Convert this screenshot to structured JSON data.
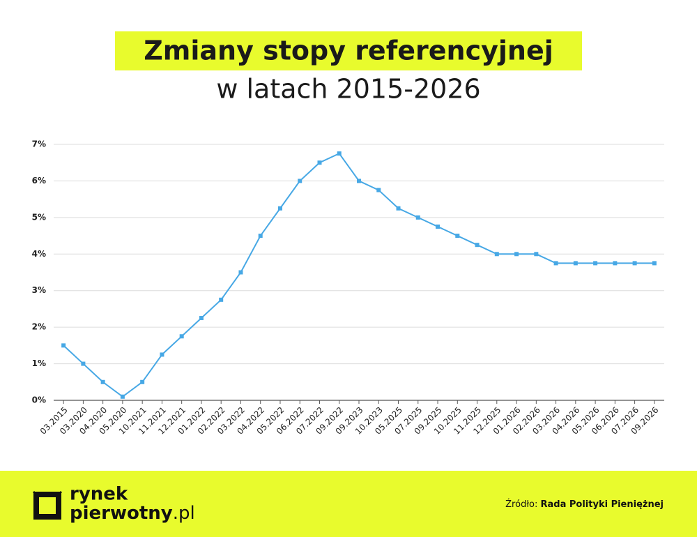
{
  "chart_data": {
    "type": "line",
    "title": "Zmiany stopy referencyjnej",
    "subtitle": "w latach 2015-2026",
    "categories": [
      "03.2015",
      "03.2020",
      "04.2020",
      "05.2020",
      "10.2021",
      "11.2021",
      "12.2021",
      "01.2022",
      "02.2022",
      "03.2022",
      "04.2022",
      "05.2022",
      "06.2022",
      "07.2022",
      "09.2022",
      "09.2023",
      "10.2023",
      "05.2025",
      "07.2025",
      "09.2025",
      "10.2025",
      "11.2025",
      "12.2025",
      "01.2026",
      "02.2026",
      "03.2026",
      "04.2026",
      "05.2026",
      "06.2026",
      "07.2026",
      "09.2026"
    ],
    "values": [
      1.5,
      1.0,
      0.5,
      0.1,
      0.5,
      1.25,
      1.75,
      2.25,
      2.75,
      3.5,
      4.5,
      5.25,
      6.0,
      6.5,
      6.75,
      6.0,
      5.75,
      5.25,
      5.0,
      4.75,
      4.5,
      4.25,
      4.0,
      4.0,
      4.0,
      3.75,
      3.75,
      3.75,
      3.75,
      3.75,
      3.75
    ],
    "color": "#47a8e5",
    "ylim": [
      0,
      7
    ],
    "yticks": [
      {
        "value": 0,
        "label": "0%"
      },
      {
        "value": 1,
        "label": "1%"
      },
      {
        "value": 2,
        "label": "2%"
      },
      {
        "value": 3,
        "label": "3%"
      },
      {
        "value": 4,
        "label": "4%"
      },
      {
        "value": 5,
        "label": "5%"
      },
      {
        "value": 6,
        "label": "6%"
      },
      {
        "value": 7,
        "label": "7%"
      }
    ],
    "grid": true
  },
  "footer": {
    "logo_line1": "rynek",
    "logo_line2": "pierwotny",
    "logo_suffix": ".pl",
    "source_label": "Źródło:",
    "source": "Rada Polityki Pieniężnej"
  }
}
